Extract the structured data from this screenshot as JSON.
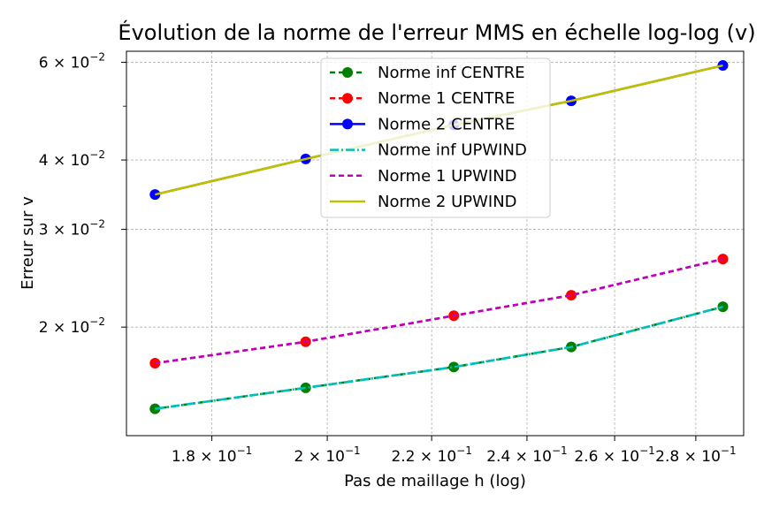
{
  "chart_data": {
    "type": "line",
    "title": "Évolution de la norme de l'erreur MMS en échelle log-log (v)",
    "xlabel": "Pas de maillage h (log)",
    "ylabel": "Erreur sur v",
    "xscale": "log",
    "yscale": "log",
    "xlim": [
      0.1665,
      0.2925
    ],
    "ylim": [
      0.01275,
      0.0628
    ],
    "grid": true,
    "legend_position": "top-center",
    "x_ticks": [
      {
        "value": 0.18,
        "base": "1.8 × 10",
        "exp": "−1"
      },
      {
        "value": 0.2,
        "base": "2 × 10",
        "exp": "−1"
      },
      {
        "value": 0.22,
        "base": "2.2 × 10",
        "exp": "−1"
      },
      {
        "value": 0.24,
        "base": "2.4 × 10",
        "exp": "−1"
      },
      {
        "value": 0.26,
        "base": "2.6 × 10",
        "exp": "−1"
      },
      {
        "value": 0.28,
        "base": "2.8 × 10",
        "exp": "−1"
      }
    ],
    "y_ticks": [
      {
        "value": 0.02,
        "base": "2 × 10",
        "exp": "−2"
      },
      {
        "value": 0.03,
        "base": "3 × 10",
        "exp": "−2"
      },
      {
        "value": 0.04,
        "base": "4 × 10",
        "exp": "−2"
      },
      {
        "value": 0.06,
        "base": "6 × 10",
        "exp": "−2"
      }
    ],
    "y_minor_ticks": [
      0.05
    ],
    "x": [
      0.1709,
      0.1961,
      0.2245,
      0.2499,
      0.287
    ],
    "series": [
      {
        "name": "Norme inf CENTRE",
        "values": [
          0.01425,
          0.01555,
          0.01695,
          0.01842,
          0.02176
        ],
        "color": "#008000",
        "dash": "6,4",
        "marker": true
      },
      {
        "name": "Norme 1 CENTRE",
        "values": [
          0.01722,
          0.01882,
          0.02097,
          0.02283,
          0.02653
        ],
        "color": "#ff0000",
        "dash": "6,4",
        "marker": true
      },
      {
        "name": "Norme 2 CENTRE",
        "values": [
          0.03466,
          0.04017,
          0.04626,
          0.05113,
          0.05921
        ],
        "color": "#0000ff",
        "dash": "",
        "marker": true
      },
      {
        "name": "Norme inf UPWIND",
        "values": [
          0.01425,
          0.01555,
          0.01695,
          0.01842,
          0.02176
        ],
        "color": "#00bfbf",
        "dash": "10,3,2,3",
        "marker": false
      },
      {
        "name": "Norme 1 UPWIND",
        "values": [
          0.01722,
          0.01882,
          0.02097,
          0.02283,
          0.02653
        ],
        "color": "#bf00bf",
        "dash": "6,4",
        "marker": false
      },
      {
        "name": "Norme 2 UPWIND",
        "values": [
          0.03466,
          0.04017,
          0.04626,
          0.05113,
          0.05921
        ],
        "color": "#bfbf00",
        "dash": "",
        "marker": false
      }
    ]
  }
}
